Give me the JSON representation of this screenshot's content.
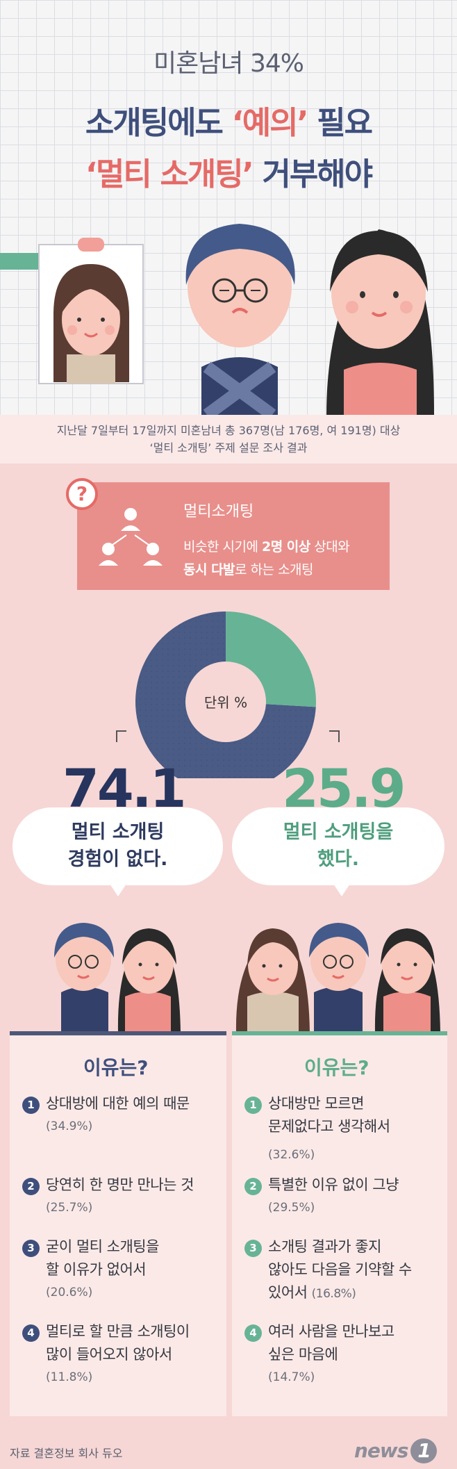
{
  "header": {
    "supertitle": "미혼남녀 34%",
    "line1_pre": "소개팅에도 ",
    "line1_accent": "‘예의’",
    "line1_post": " 필요",
    "line2_accent": "‘멀티 소개팅’",
    "line2_post": " 거부해야"
  },
  "survey": {
    "line1": "지난달 7일부터 17일까지 미혼남녀 총 367명(남 176명, 여 191명) 대상",
    "line2": "‘멀티 소개팅’ 주제 설문 조사 결과"
  },
  "definition": {
    "icon": "question-icon",
    "mark": "?",
    "title": "멀티소개팅",
    "desc1_pre": "비슷한 시기에 ",
    "desc1_bold": "2명 이상",
    "desc1_post": " 상대와",
    "desc2_bold": "동시 다발",
    "desc2_post": "로 하는 소개팅"
  },
  "chart_data": {
    "type": "pie",
    "center_label": "단위 %",
    "categories": [
      "멀티 소개팅 경험이 없다.",
      "멀티 소개팅을 했다."
    ],
    "values": [
      74.1,
      25.9
    ],
    "colors": [
      "#4a5b85",
      "#67b396"
    ]
  },
  "results": {
    "no": {
      "value": "74.1",
      "bubble1": "멀티 소개팅",
      "bubble2": "경험이 없다.",
      "color": "#27355e"
    },
    "yes": {
      "value": "25.9",
      "bubble1": "멀티 소개팅을",
      "bubble2": "했다.",
      "color": "#5cac8a"
    }
  },
  "reasons_no": {
    "title": "이유는?",
    "items": [
      {
        "n": "1",
        "lines": [
          "상대방에 대한 예의 때문"
        ],
        "pct": "(34.9%)"
      },
      {
        "n": "2",
        "lines": [
          "당연히 한 명만 만나는 것"
        ],
        "pct": "(25.7%)"
      },
      {
        "n": "3",
        "lines": [
          "굳이 멀티 소개팅을",
          "할 이유가 없어서"
        ],
        "pct": "(20.6%)"
      },
      {
        "n": "4",
        "lines": [
          "멀티로 할 만큼 소개팅이",
          "많이 들어오지 않아서"
        ],
        "pct": "(11.8%)"
      }
    ]
  },
  "reasons_yes": {
    "title": "이유는?",
    "items": [
      {
        "n": "1",
        "lines": [
          "상대방만 모르면",
          "문제없다고 생각해서"
        ],
        "pct": "(32.6%)"
      },
      {
        "n": "2",
        "lines": [
          "특별한 이유 없이 그냥"
        ],
        "pct": "(29.5%)"
      },
      {
        "n": "3",
        "lines": [
          "소개팅 결과가 좋지",
          "않아도 다음을 기약할 수",
          "있어서"
        ],
        "pct": "(16.8%)"
      },
      {
        "n": "4",
        "lines": [
          "여러 사람을 만나보고",
          "싶은 마음에"
        ],
        "pct": "(14.7%)"
      }
    ]
  },
  "footer": {
    "source": "자료  결혼정보 회사 듀오",
    "logo": "news",
    "logo_num": "1"
  }
}
